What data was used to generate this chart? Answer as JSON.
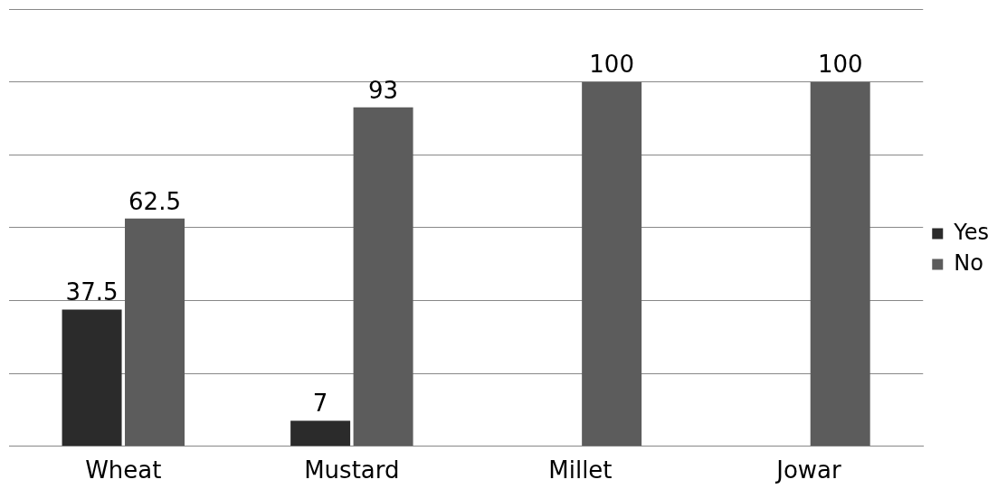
{
  "chart_data": {
    "type": "bar",
    "categories": [
      "Wheat",
      "Mustard",
      "Millet",
      "Jowar"
    ],
    "series": [
      {
        "name": "Yes",
        "color": "#2b2b2b",
        "values": [
          37.5,
          7,
          null,
          null
        ]
      },
      {
        "name": "No",
        "color": "#5c5c5c",
        "values": [
          62.5,
          93,
          100,
          100
        ]
      }
    ],
    "ylim": [
      0,
      120
    ],
    "grid": "y",
    "legend": "right",
    "data_labels": true,
    "tick_labels": "x"
  }
}
